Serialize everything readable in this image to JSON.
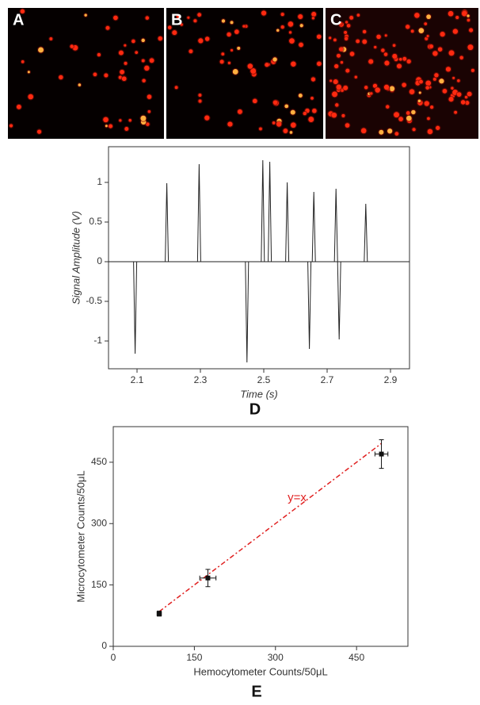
{
  "images": [
    "A",
    "B",
    "C"
  ],
  "chart_data": [
    {
      "type": "stem",
      "panel_label": "D",
      "xlabel": "Time (s)",
      "ylabel": "Signal  Amplitude (V)",
      "x": [
        2.094,
        2.194,
        2.296,
        2.447,
        2.497,
        2.519,
        2.574,
        2.644,
        2.658,
        2.728,
        2.738,
        2.822
      ],
      "values": [
        -1.16,
        0.99,
        1.23,
        -1.27,
        1.28,
        1.26,
        1.0,
        -1.1,
        0.88,
        0.92,
        -0.98,
        0.73
      ],
      "color": "#222",
      "xlim": [
        2.01,
        2.96
      ],
      "ylim": [
        -1.35,
        1.45
      ],
      "xticks": [
        2.1,
        2.3,
        2.5,
        2.7,
        2.9
      ],
      "yticks": [
        -1,
        -0.5,
        0,
        0.5,
        1
      ]
    },
    {
      "type": "scatter",
      "panel_label": "E",
      "xlabel": "Hemocytometer Counts/50μL",
      "ylabel": "Microcytometer Counts/50μL",
      "x": [
        85,
        175,
        496
      ],
      "values": [
        80,
        167,
        470
      ],
      "x_errors": [
        4,
        15,
        12
      ],
      "y_errors": [
        6,
        21,
        35
      ],
      "color": "#111",
      "reference_line": {
        "label": "y=x",
        "x": [
          85,
          496
        ],
        "color": "#e02020"
      },
      "xlim": [
        0,
        545
      ],
      "ylim": [
        0,
        537
      ],
      "xticks": [
        0,
        150,
        300,
        450
      ],
      "yticks": [
        0,
        150,
        300,
        450
      ]
    }
  ]
}
